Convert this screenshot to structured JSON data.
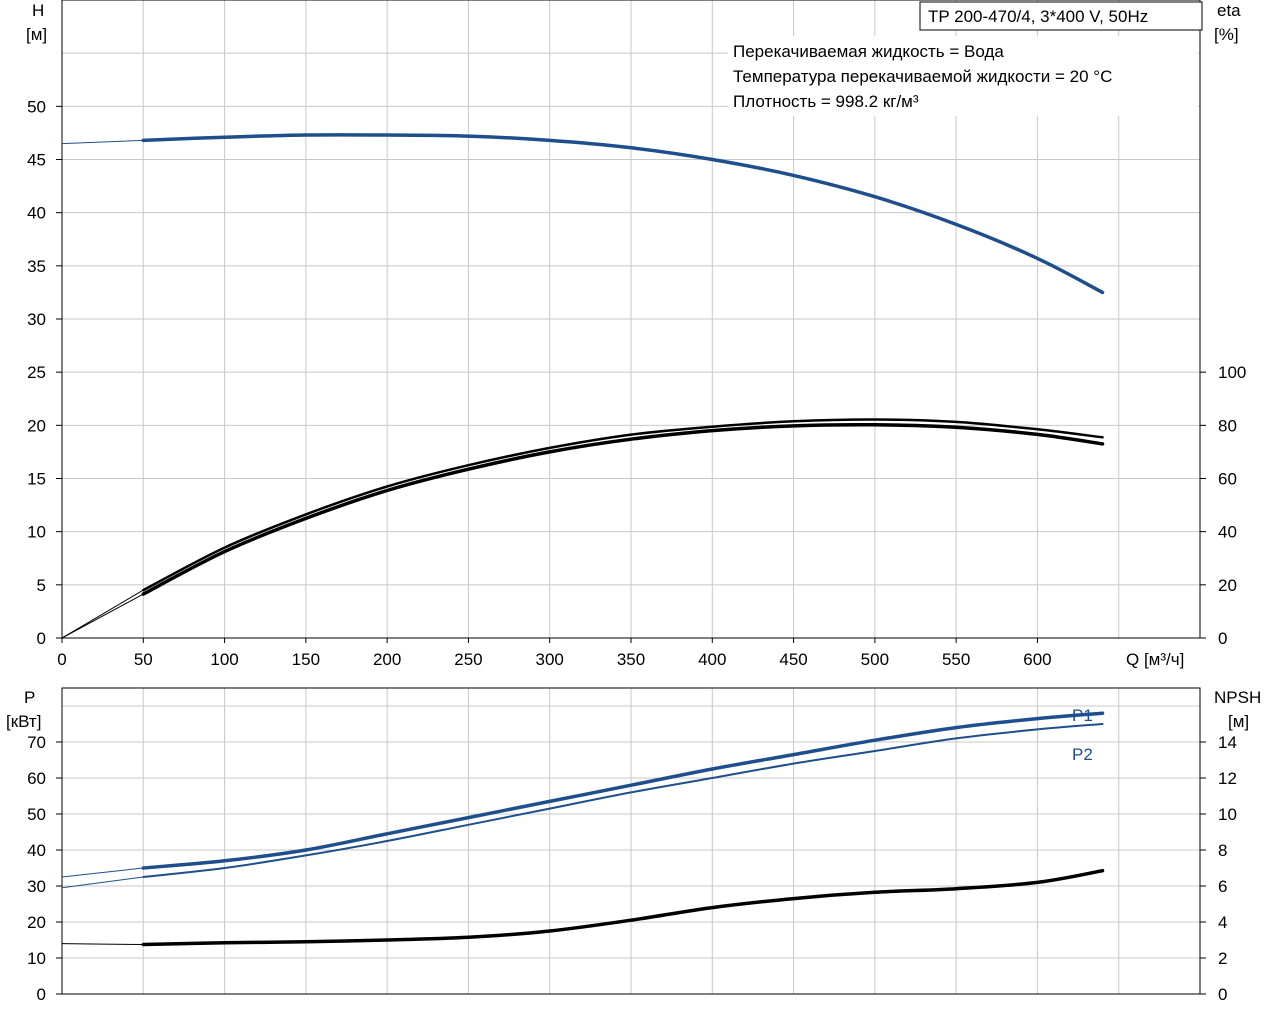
{
  "title": "TP 200-470/4, 3*400 V, 50Hz",
  "info_lines": [
    "Перекачиваемая жидкость = Вода",
    "Температура перекачиваемой жидкости = 20 °C",
    "Плотность = 998.2 кг/м³"
  ],
  "colors": {
    "head": "#1f4e8c",
    "power": "#1f4e8c",
    "eta": "#000000",
    "npsh": "#000000",
    "grid": "#c8c8c8"
  },
  "chart_data": [
    {
      "type": "line",
      "title": "TP 200-470/4, 3*400 V, 50Hz",
      "xlabel": "Q [м³/ч]",
      "ylabel_left": "H",
      "ylabel_left_unit": "[м]",
      "ylabel_right": "eta",
      "ylabel_right_unit": "[%]",
      "xlim": [
        0,
        700
      ],
      "ylim_left": [
        0,
        60
      ],
      "ylim_right": [
        0,
        240
      ],
      "x_ticks": [
        "0",
        "50",
        "100",
        "150",
        "200",
        "250",
        "300",
        "350",
        "400",
        "450",
        "500",
        "550",
        "600"
      ],
      "y_ticks_left": [
        "0",
        "5",
        "10",
        "15",
        "20",
        "25",
        "30",
        "35",
        "40",
        "45",
        "50"
      ],
      "y_ticks_right": [
        "0",
        "20",
        "40",
        "60",
        "80",
        "100"
      ],
      "grid": true,
      "series": [
        {
          "axis": "left",
          "x": [
            0,
            50,
            100,
            150,
            200,
            250,
            300,
            350,
            400,
            450,
            500,
            550,
            600,
            640
          ],
          "values": [
            46.5,
            46.8,
            47.1,
            47.3,
            47.3,
            47.2,
            46.8,
            46.1,
            45.0,
            43.5,
            41.5,
            38.9,
            35.7,
            32.5
          ]
        },
        {
          "axis": "right",
          "x": [
            0,
            50,
            100,
            150,
            200,
            250,
            300,
            350,
            400,
            450,
            500,
            550,
            600,
            640
          ],
          "values": [
            0,
            18,
            34,
            46.5,
            57,
            65,
            71.5,
            76.5,
            79.5,
            81.5,
            82.2,
            81.3,
            78.5,
            75.5
          ]
        },
        {
          "axis": "right",
          "x": [
            0,
            50,
            100,
            150,
            200,
            250,
            300,
            350,
            400,
            450,
            500,
            550,
            600,
            640
          ],
          "values": [
            0,
            16.5,
            32.5,
            45,
            55.5,
            63.5,
            70,
            74.8,
            78,
            79.8,
            80.2,
            79.3,
            76.6,
            73
          ]
        }
      ]
    },
    {
      "type": "line",
      "ylabel_left": "P",
      "ylabel_left_unit": "[кВт]",
      "ylabel_right": "NPSH",
      "ylabel_right_unit": "[м]",
      "xlim": [
        0,
        700
      ],
      "ylim_left": [
        0,
        85
      ],
      "ylim_right": [
        0,
        17
      ],
      "y_ticks_left": [
        "0",
        "10",
        "20",
        "30",
        "40",
        "50",
        "60",
        "70"
      ],
      "y_ticks_right": [
        "0",
        "2",
        "4",
        "6",
        "8",
        "10",
        "12",
        "14"
      ],
      "grid": true,
      "series": [
        {
          "name": "P1",
          "axis": "left",
          "x": [
            0,
            50,
            100,
            150,
            200,
            250,
            300,
            350,
            400,
            450,
            500,
            550,
            600,
            640
          ],
          "values": [
            32.5,
            35,
            37,
            40,
            44.5,
            49,
            53.5,
            58,
            62.5,
            66.5,
            70.5,
            74,
            76.5,
            78
          ]
        },
        {
          "name": "P2",
          "axis": "left",
          "x": [
            0,
            50,
            100,
            150,
            200,
            250,
            300,
            350,
            400,
            450,
            500,
            550,
            600,
            640
          ],
          "values": [
            29.5,
            32.5,
            35,
            38.5,
            42.5,
            47,
            51.5,
            56,
            60,
            64,
            67.5,
            71,
            73.5,
            75
          ]
        },
        {
          "axis": "right",
          "x": [
            0,
            50,
            100,
            150,
            200,
            250,
            300,
            350,
            400,
            450,
            500,
            550,
            600,
            640
          ],
          "values": [
            2.8,
            2.75,
            2.85,
            2.9,
            3.0,
            3.15,
            3.5,
            4.1,
            4.8,
            5.3,
            5.65,
            5.85,
            6.2,
            6.85
          ]
        }
      ]
    }
  ]
}
